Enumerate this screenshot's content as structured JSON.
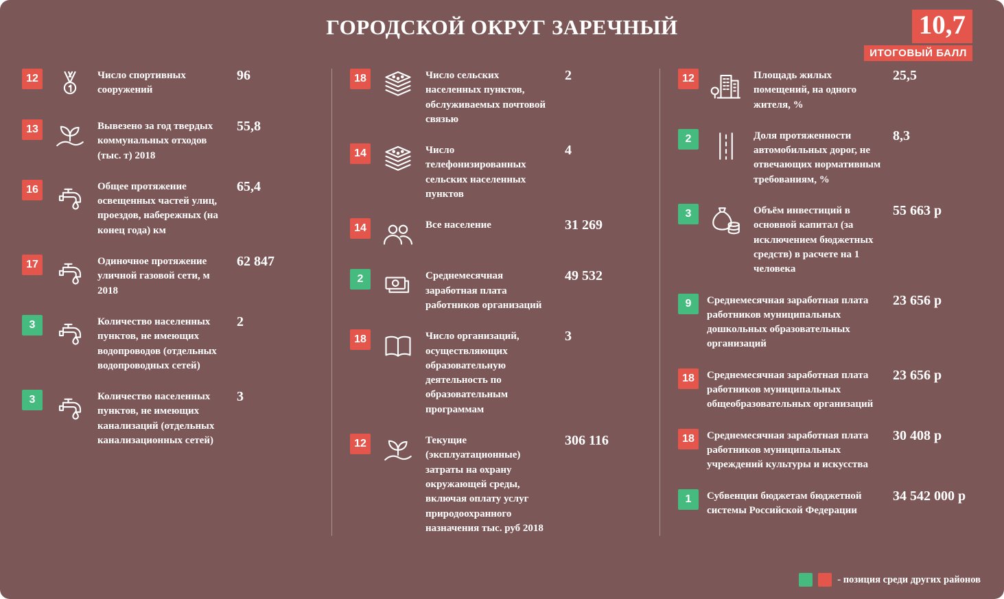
{
  "header": {
    "title": "ГОРОДСКОЙ ОКРУГ ЗАРЕЧНЫЙ",
    "score": "10,7",
    "score_label": "ИТОГОВЫЙ БАЛЛ"
  },
  "colors": {
    "background": "#7c5757",
    "badge_red": "#e4564c",
    "badge_green": "#45bb7f",
    "text": "#ffffff"
  },
  "legend": {
    "text": "- позиция среди других районов"
  },
  "chart_data": {
    "type": "table",
    "title": "ГОРОДСКОЙ ОКРУГ ЗАРЕЧНЫЙ",
    "total_score": "10,7",
    "columns": [
      {
        "items": [
          {
            "rank": "12",
            "rank_color": "red",
            "icon": "medal-icon",
            "label": "Число спортивных сооружений",
            "value": "96"
          },
          {
            "rank": "13",
            "rank_color": "red",
            "icon": "plant-hand-icon",
            "label": "Вывезено за год твердых коммунальных отходов (тыс. т) 2018",
            "value": "55,8"
          },
          {
            "rank": "16",
            "rank_color": "red",
            "icon": "tap-icon",
            "label": "Общее протяжение освещенных частей улиц, проездов, набережных (на конец года) км",
            "value": "65,4"
          },
          {
            "rank": "17",
            "rank_color": "red",
            "icon": "tap-icon",
            "label": "Одиночное протяжение уличной газовой сети, м 2018",
            "value": "62 847"
          },
          {
            "rank": "3",
            "rank_color": "green",
            "icon": "tap-icon",
            "label": "Количество населенных пунктов, не имеющих водопроводов (отдельных водопроводных сетей)",
            "value": "2"
          },
          {
            "rank": "3",
            "rank_color": "green",
            "icon": "tap-icon",
            "label": "Количество населенных пунктов, не имеющих канализаций (отдельных канализационных сетей)",
            "value": "3"
          }
        ]
      },
      {
        "items": [
          {
            "rank": "18",
            "rank_color": "red",
            "icon": "chip-stack-icon",
            "label": "Число сельских населенных пунктов, обслуживаемых почтовой связью",
            "value": "2"
          },
          {
            "rank": "14",
            "rank_color": "red",
            "icon": "chip-stack-icon",
            "label": "Число телефонизированных сельских населенных пунктов",
            "value": "4"
          },
          {
            "rank": "14",
            "rank_color": "red",
            "icon": "people-icon",
            "label": "Все население",
            "value": "31 269"
          },
          {
            "rank": "2",
            "rank_color": "green",
            "icon": "banknotes-icon",
            "label": "Среднемесячная заработная плата работников организаций",
            "value": "49 532"
          },
          {
            "rank": "18",
            "rank_color": "red",
            "icon": "book-icon",
            "label": "Число организаций, осуществляющих образовательную деятельность по образовательным программам",
            "value": "3"
          },
          {
            "rank": "12",
            "rank_color": "red",
            "icon": "plant-hand-icon",
            "label": "Текущие (эксплуатационные) затраты на охрану окружающей среды, включая оплату услуг природоохранного назначения тыс. руб 2018",
            "value": "306 116"
          }
        ]
      },
      {
        "items": [
          {
            "rank": "12",
            "rank_color": "red",
            "icon": "buildings-icon",
            "label": "Площадь жилых помещений, на одного жителя, %",
            "value": "25,5"
          },
          {
            "rank": "2",
            "rank_color": "green",
            "icon": "road-icon",
            "label": "Доля протяженности автомобильных дорог, не отвечающих нормативным требованиям, %",
            "value": "8,3"
          },
          {
            "rank": "3",
            "rank_color": "green",
            "icon": "moneybag-icon",
            "label": "Объём инвестиций в основной капитал (за исключением бюджетных средств) в расчете на 1 человека",
            "value": "55 663 р"
          },
          {
            "rank": "9",
            "rank_color": "green",
            "icon": null,
            "label": "Среднемесячная заработная плата работников муниципальных дошкольных образовательных организаций",
            "value": "23 656 р"
          },
          {
            "rank": "18",
            "rank_color": "red",
            "icon": null,
            "label": "Среднемесячная заработная плата работников муниципальных общеобразовательных организаций",
            "value": "23 656 р"
          },
          {
            "rank": "18",
            "rank_color": "red",
            "icon": null,
            "label": "Среднемесячная заработная плата работников муниципальных учреждений культуры и искусства",
            "value": "30 408 р"
          },
          {
            "rank": "1",
            "rank_color": "green",
            "icon": null,
            "label": "Субвенции бюджетам бюджетной системы Российской Федерации",
            "value": "34 542 000 р"
          }
        ]
      }
    ]
  }
}
